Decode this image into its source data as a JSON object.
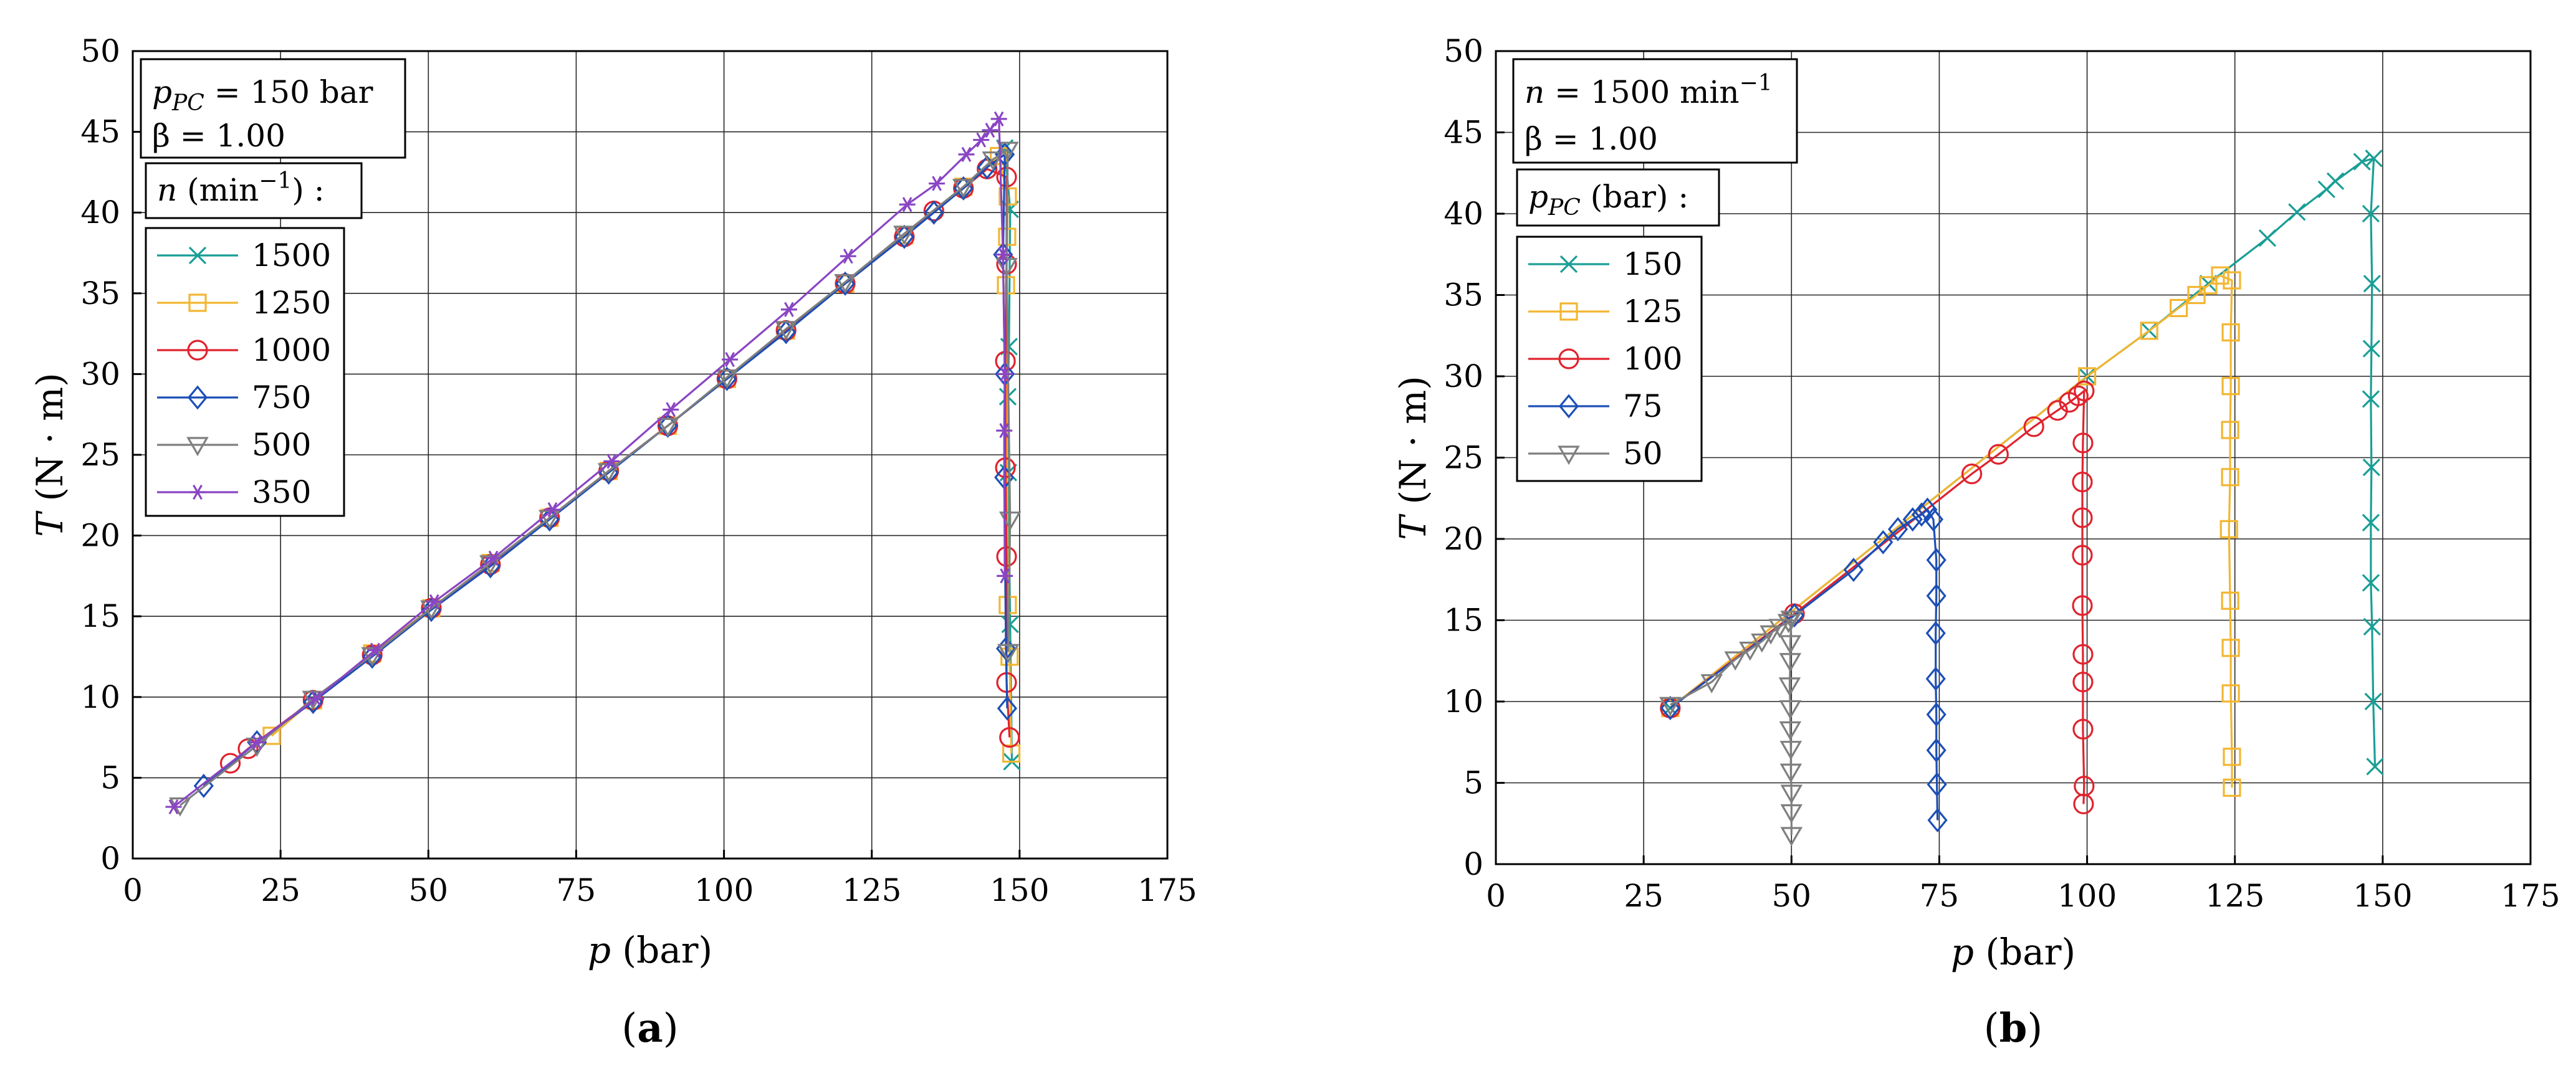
{
  "chart_data": [
    {
      "type": "line",
      "panel_label": "a",
      "caption": {
        "open": "(",
        "letter": "a",
        "close": ")"
      },
      "xlabel": {
        "sym": "p",
        "unit": " (bar)"
      },
      "ylabel": {
        "sym": "T",
        "unit": " (N · m)"
      },
      "xlim": [
        0,
        175
      ],
      "ylim": [
        0,
        50
      ],
      "xticks": [
        0,
        25,
        50,
        75,
        100,
        125,
        150,
        175
      ],
      "yticks": [
        0,
        5,
        10,
        15,
        20,
        25,
        30,
        35,
        40,
        45,
        50
      ],
      "grid": true,
      "info_box": {
        "line1": {
          "sym": "p",
          "sub": "PC",
          "rest": " = 150 bar"
        },
        "line2": "β = 1.00"
      },
      "legend_title": {
        "sym": "n",
        "unit": " (min",
        "sup": "−1",
        "tail": ") :"
      },
      "legend_position": "upper-left",
      "series": [
        {
          "name": "1500",
          "color": "#1a9e96",
          "marker": "x",
          "points": [
            [
              147.5,
              44.0
            ],
            [
              148.4,
              40.2
            ],
            [
              148.2,
              31.7
            ],
            [
              148.0,
              28.6
            ],
            [
              148.1,
              23.9
            ],
            [
              148.4,
              14.5
            ],
            [
              148.7,
              6.0
            ]
          ]
        },
        {
          "name": "1250",
          "color": "#f2b632",
          "marker": "square",
          "points": [
            [
              23.5,
              7.6
            ],
            [
              30.5,
              9.8
            ],
            [
              40.5,
              12.7
            ],
            [
              50.5,
              15.5
            ],
            [
              60.5,
              18.3
            ],
            [
              70.5,
              21.1
            ],
            [
              80.5,
              24.0
            ],
            [
              90.5,
              26.8
            ],
            [
              100.5,
              29.7
            ],
            [
              110.5,
              32.7
            ],
            [
              120.5,
              35.6
            ],
            [
              130.5,
              38.6
            ],
            [
              140.5,
              41.6
            ],
            [
              146.5,
              43.5
            ],
            [
              148.0,
              41.0
            ],
            [
              147.9,
              38.5
            ],
            [
              147.7,
              35.5
            ],
            [
              148.0,
              15.7
            ],
            [
              148.3,
              12.5
            ],
            [
              148.6,
              6.5
            ]
          ]
        },
        {
          "name": "1000",
          "color": "#e0232e",
          "marker": "circle",
          "points": [
            [
              16.5,
              5.9
            ],
            [
              19.5,
              6.8
            ],
            [
              30.5,
              9.8
            ],
            [
              40.5,
              12.6
            ],
            [
              50.5,
              15.5
            ],
            [
              60.5,
              18.2
            ],
            [
              70.5,
              21.1
            ],
            [
              80.5,
              24.0
            ],
            [
              90.5,
              26.8
            ],
            [
              100.5,
              29.7
            ],
            [
              110.5,
              32.7
            ],
            [
              120.5,
              35.6
            ],
            [
              130.5,
              38.5
            ],
            [
              135.5,
              40.1
            ],
            [
              140.5,
              41.5
            ],
            [
              144.5,
              42.7
            ],
            [
              147.8,
              42.2
            ],
            [
              147.8,
              36.8
            ],
            [
              147.6,
              30.8
            ],
            [
              147.6,
              24.2
            ],
            [
              147.8,
              18.7
            ],
            [
              147.8,
              10.9
            ],
            [
              148.3,
              7.5
            ]
          ]
        },
        {
          "name": "750",
          "color": "#1c4fb6",
          "marker": "diamond",
          "points": [
            [
              12.0,
              4.5
            ],
            [
              21.0,
              7.2
            ],
            [
              30.5,
              9.7
            ],
            [
              40.5,
              12.5
            ],
            [
              50.5,
              15.4
            ],
            [
              60.5,
              18.1
            ],
            [
              70.5,
              21.0
            ],
            [
              80.5,
              23.9
            ],
            [
              90.5,
              26.8
            ],
            [
              100.5,
              29.7
            ],
            [
              110.5,
              32.6
            ],
            [
              120.5,
              35.6
            ],
            [
              130.5,
              38.5
            ],
            [
              135.5,
              40.0
            ],
            [
              140.5,
              41.5
            ],
            [
              144.5,
              42.8
            ],
            [
              147.5,
              43.6
            ],
            [
              147.2,
              37.4
            ],
            [
              147.5,
              30.0
            ],
            [
              147.4,
              23.6
            ],
            [
              147.7,
              13.0
            ],
            [
              147.9,
              9.3
            ]
          ]
        },
        {
          "name": "500",
          "color": "#7f7f7f",
          "marker": "triangle-down",
          "points": [
            [
              8.0,
              3.3
            ],
            [
              21.0,
              7.0
            ],
            [
              30.5,
              9.9
            ],
            [
              40.5,
              12.6
            ],
            [
              50.5,
              15.5
            ],
            [
              60.5,
              18.3
            ],
            [
              70.5,
              21.1
            ],
            [
              80.5,
              24.0
            ],
            [
              90.5,
              26.8
            ],
            [
              100.5,
              29.8
            ],
            [
              110.5,
              32.8
            ],
            [
              120.5,
              35.7
            ],
            [
              130.5,
              38.7
            ],
            [
              140.5,
              41.6
            ],
            [
              145.5,
              43.3
            ],
            [
              148.0,
              43.9
            ],
            [
              147.8,
              36.7
            ],
            [
              148.4,
              21.0
            ],
            [
              148.1,
              12.8
            ]
          ]
        },
        {
          "name": "350",
          "color": "#8a45c4",
          "marker": "asterisk",
          "points": [
            [
              6.9,
              3.2
            ],
            [
              21.0,
              7.2
            ],
            [
              31.0,
              9.9
            ],
            [
              41.0,
              12.9
            ],
            [
              51.0,
              15.9
            ],
            [
              61.0,
              18.6
            ],
            [
              71.0,
              21.6
            ],
            [
              81.0,
              24.6
            ],
            [
              91.0,
              27.8
            ],
            [
              101.0,
              30.9
            ],
            [
              111.0,
              34.0
            ],
            [
              121.0,
              37.3
            ],
            [
              131.0,
              40.5
            ],
            [
              136.0,
              41.8
            ],
            [
              141.0,
              43.6
            ],
            [
              143.5,
              44.5
            ],
            [
              145.0,
              45.1
            ],
            [
              146.5,
              45.8
            ],
            [
              147.2,
              37.4
            ],
            [
              147.5,
              30.0
            ],
            [
              147.4,
              26.5
            ],
            [
              147.5,
              17.5
            ]
          ]
        }
      ]
    },
    {
      "type": "line",
      "panel_label": "b",
      "caption": {
        "open": "(",
        "letter": "b",
        "close": ")"
      },
      "xlabel": {
        "sym": "p",
        "unit": " (bar)"
      },
      "ylabel": {
        "sym": "T",
        "unit": " (N · m)"
      },
      "xlim": [
        0,
        175
      ],
      "ylim": [
        0,
        50
      ],
      "xticks": [
        0,
        25,
        50,
        75,
        100,
        125,
        150,
        175
      ],
      "yticks": [
        0,
        5,
        10,
        15,
        20,
        25,
        30,
        35,
        40,
        45,
        50
      ],
      "grid": true,
      "info_box": {
        "line1": {
          "sym": "n",
          "rest": " = 1500 min",
          "sup": "−1"
        },
        "line2": "β = 1.00"
      },
      "legend_title": {
        "sym": "p",
        "sub": "PC",
        "unit": " (bar) :"
      },
      "legend_position": "upper-left",
      "series": [
        {
          "name": "150",
          "color": "#1a9e96",
          "marker": "x",
          "points": [
            [
              29.5,
              9.6
            ],
            [
              100.0,
              30.0
            ],
            [
              110.5,
              32.8
            ],
            [
              120.5,
              35.7
            ],
            [
              130.5,
              38.5
            ],
            [
              135.5,
              40.1
            ],
            [
              140.5,
              41.5
            ],
            [
              142.0,
              42.0
            ],
            [
              146.5,
              43.2
            ],
            [
              148.5,
              43.4
            ],
            [
              148.0,
              40.0
            ],
            [
              148.2,
              35.7
            ],
            [
              148.1,
              31.7
            ],
            [
              148.0,
              28.6
            ],
            [
              148.1,
              24.4
            ],
            [
              148.0,
              21.0
            ],
            [
              148.0,
              17.3
            ],
            [
              148.2,
              14.6
            ],
            [
              148.4,
              10.0
            ],
            [
              148.7,
              6.0
            ]
          ]
        },
        {
          "name": "125",
          "color": "#f2b632",
          "marker": "square",
          "points": [
            [
              29.5,
              9.6
            ],
            [
              100.0,
              30.0
            ],
            [
              110.5,
              32.8
            ],
            [
              115.5,
              34.2
            ],
            [
              118.5,
              35.0
            ],
            [
              120.5,
              35.6
            ],
            [
              122.5,
              36.2
            ],
            [
              124.5,
              35.9
            ],
            [
              124.3,
              32.7
            ],
            [
              124.3,
              29.4
            ],
            [
              124.2,
              26.7
            ],
            [
              124.2,
              23.8
            ],
            [
              124.0,
              20.6
            ],
            [
              124.2,
              16.2
            ],
            [
              124.3,
              13.3
            ],
            [
              124.3,
              10.5
            ],
            [
              124.5,
              6.6
            ],
            [
              124.5,
              4.7
            ]
          ]
        },
        {
          "name": "100",
          "color": "#e0232e",
          "marker": "circle",
          "points": [
            [
              29.5,
              9.6
            ],
            [
              50.5,
              15.4
            ],
            [
              80.5,
              24.0
            ],
            [
              85.0,
              25.2
            ],
            [
              91.0,
              26.9
            ],
            [
              95.0,
              27.9
            ],
            [
              97.0,
              28.4
            ],
            [
              98.5,
              28.8
            ],
            [
              99.5,
              29.1
            ],
            [
              99.3,
              25.9
            ],
            [
              99.2,
              23.5
            ],
            [
              99.2,
              21.3
            ],
            [
              99.2,
              19.0
            ],
            [
              99.2,
              15.9
            ],
            [
              99.3,
              12.9
            ],
            [
              99.3,
              11.2
            ],
            [
              99.3,
              8.3
            ],
            [
              99.5,
              4.8
            ],
            [
              99.4,
              3.7
            ]
          ]
        },
        {
          "name": "75",
          "color": "#1c4fb6",
          "marker": "diamond",
          "points": [
            [
              29.5,
              9.6
            ],
            [
              50.5,
              15.3
            ],
            [
              60.5,
              18.1
            ],
            [
              65.5,
              19.8
            ],
            [
              68.0,
              20.6
            ],
            [
              70.5,
              21.2
            ],
            [
              72.0,
              21.5
            ],
            [
              73.0,
              21.8
            ],
            [
              74.0,
              21.2
            ],
            [
              74.5,
              18.7
            ],
            [
              74.5,
              16.5
            ],
            [
              74.4,
              14.2
            ],
            [
              74.4,
              11.4
            ],
            [
              74.5,
              9.2
            ],
            [
              74.5,
              7.0
            ],
            [
              74.6,
              4.9
            ],
            [
              74.7,
              2.7
            ]
          ]
        },
        {
          "name": "50",
          "color": "#7f7f7f",
          "marker": "triangle-down",
          "points": [
            [
              29.5,
              9.8
            ],
            [
              36.5,
              11.2
            ],
            [
              40.5,
              12.6
            ],
            [
              43.0,
              13.2
            ],
            [
              45.0,
              13.7
            ],
            [
              46.5,
              14.2
            ],
            [
              48.0,
              14.6
            ],
            [
              49.5,
              14.9
            ],
            [
              50.0,
              15.1
            ],
            [
              49.8,
              13.6
            ],
            [
              49.8,
              12.5
            ],
            [
              49.7,
              11.0
            ],
            [
              49.8,
              9.6
            ],
            [
              49.8,
              8.3
            ],
            [
              49.9,
              7.1
            ],
            [
              49.9,
              5.7
            ],
            [
              50.0,
              4.4
            ],
            [
              50.0,
              3.2
            ],
            [
              50.0,
              1.8
            ]
          ]
        }
      ]
    }
  ]
}
